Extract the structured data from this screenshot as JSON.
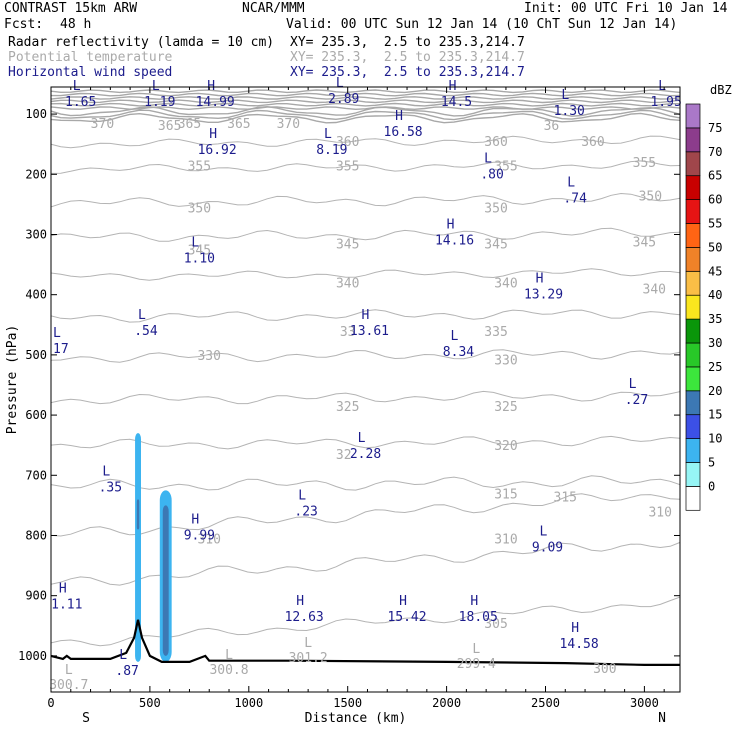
{
  "header": {
    "model": "CONTRAST 15km ARW",
    "org": "NCAR/MMM",
    "init": "Init: 00 UTC Fri 10 Jan 14",
    "fcst_label": "Fcst:",
    "fcst_value": "48 h",
    "valid": "Valid: 00 UTC Sun 12 Jan 14 (10 ChT Sun 12 Jan 14)",
    "fields": [
      {
        "name": "Radar reflectivity (lamda = 10 cm)",
        "xy": "XY= 235.3,  2.5 to 235.3,214.7",
        "color": "#000000"
      },
      {
        "name": "Potential temperature",
        "xy": "XY= 235.3,  2.5 to 235.3,214.7",
        "color": "#aaaaaa"
      },
      {
        "name": "Horizontal wind speed",
        "xy": "XY= 235.3,  2.5 to 235.3,214.7",
        "color": "#1c1c8c"
      }
    ]
  },
  "chart_data": {
    "type": "cross-section",
    "xlabel": "Distance (km)",
    "ylabel": "Pressure (hPa)",
    "xlim": [
      0,
      3180
    ],
    "ylim": [
      1060,
      55
    ],
    "x_ticks": [
      0,
      500,
      1000,
      1500,
      2000,
      2500,
      3000
    ],
    "y_ticks": [
      100,
      200,
      300,
      400,
      500,
      600,
      700,
      800,
      900,
      1000
    ],
    "left_end_label": "S",
    "right_end_label": "N",
    "colorbar": {
      "title": "dBZ",
      "levels": [
        0,
        5,
        10,
        15,
        20,
        25,
        30,
        35,
        40,
        45,
        50,
        55,
        60,
        65,
        70,
        75
      ],
      "colors": [
        "#ffffff",
        "#96f5f5",
        "#3cb4f0",
        "#3c50e6",
        "#3c78b4",
        "#3ce63c",
        "#28c828",
        "#0a960a",
        "#fae61e",
        "#fabe46",
        "#f08228",
        "#ff6414",
        "#e61414",
        "#c80000",
        "#a0464b",
        "#8c3c8c",
        "#aa78c8"
      ]
    },
    "theta_labels": [
      {
        "x": 260,
        "p": 115,
        "t": "370"
      },
      {
        "x": 700,
        "p": 115,
        "t": "365"
      },
      {
        "x": 950,
        "p": 115,
        "t": "365"
      },
      {
        "x": 1200,
        "p": 115,
        "t": "370"
      },
      {
        "x": 600,
        "p": 118,
        "t": "365"
      },
      {
        "x": 1500,
        "p": 145,
        "t": "360"
      },
      {
        "x": 2250,
        "p": 145,
        "t": "360"
      },
      {
        "x": 2740,
        "p": 145,
        "t": "360"
      },
      {
        "x": 2530,
        "p": 118,
        "t": "36"
      },
      {
        "x": 750,
        "p": 185,
        "t": "355"
      },
      {
        "x": 1500,
        "p": 185,
        "t": "355"
      },
      {
        "x": 2300,
        "p": 185,
        "t": "355"
      },
      {
        "x": 3000,
        "p": 180,
        "t": "355"
      },
      {
        "x": 750,
        "p": 255,
        "t": "350"
      },
      {
        "x": 2250,
        "p": 255,
        "t": "350"
      },
      {
        "x": 3030,
        "p": 235,
        "t": "350"
      },
      {
        "x": 750,
        "p": 325,
        "t": "345"
      },
      {
        "x": 1500,
        "p": 315,
        "t": "345"
      },
      {
        "x": 2250,
        "p": 315,
        "t": "345"
      },
      {
        "x": 3000,
        "p": 312,
        "t": "345"
      },
      {
        "x": 1500,
        "p": 380,
        "t": "340"
      },
      {
        "x": 2300,
        "p": 380,
        "t": "340"
      },
      {
        "x": 3050,
        "p": 390,
        "t": "340"
      },
      {
        "x": 1500,
        "p": 460,
        "t": "33"
      },
      {
        "x": 2250,
        "p": 460,
        "t": "335"
      },
      {
        "x": 800,
        "p": 500,
        "t": "330"
      },
      {
        "x": 2300,
        "p": 508,
        "t": "330"
      },
      {
        "x": 1500,
        "p": 585,
        "t": "325"
      },
      {
        "x": 2300,
        "p": 585,
        "t": "325"
      },
      {
        "x": 1480,
        "p": 665,
        "t": "32"
      },
      {
        "x": 2300,
        "p": 650,
        "t": "320"
      },
      {
        "x": 2300,
        "p": 730,
        "t": "315"
      },
      {
        "x": 2600,
        "p": 735,
        "t": "315"
      },
      {
        "x": 3080,
        "p": 760,
        "t": "310"
      },
      {
        "x": 800,
        "p": 805,
        "t": "310"
      },
      {
        "x": 2300,
        "p": 805,
        "t": "310"
      },
      {
        "x": 2250,
        "p": 945,
        "t": "305"
      },
      {
        "x": 2800,
        "p": 1020,
        "t": "300"
      }
    ],
    "theta_extrema": [
      {
        "x": 90,
        "p": 1050,
        "t": "L",
        "v": "300.7"
      },
      {
        "x": 900,
        "p": 1025,
        "t": "L",
        "v": "300.8"
      },
      {
        "x": 1300,
        "p": 1005,
        "t": "L",
        "v": "301.2"
      },
      {
        "x": 2150,
        "p": 1015,
        "t": "L",
        "v": "299.4"
      }
    ],
    "wind_extrema": [
      {
        "x": 150,
        "p": 80,
        "t": "L",
        "v": "1.65"
      },
      {
        "x": 550,
        "p": 80,
        "t": "L",
        "v": "1.19"
      },
      {
        "x": 830,
        "p": 80,
        "t": "H",
        "v": "14.99"
      },
      {
        "x": 1480,
        "p": 75,
        "t": "L",
        "v": "2.89"
      },
      {
        "x": 2050,
        "p": 80,
        "t": "H",
        "v": "14.5"
      },
      {
        "x": 2620,
        "p": 95,
        "t": "L",
        "v": "1.30"
      },
      {
        "x": 3110,
        "p": 80,
        "t": "L",
        "v": "1.95"
      },
      {
        "x": 840,
        "p": 160,
        "t": "H",
        "v": "16.92"
      },
      {
        "x": 1420,
        "p": 160,
        "t": "L",
        "v": "8.19"
      },
      {
        "x": 1780,
        "p": 130,
        "t": "H",
        "v": "16.58"
      },
      {
        "x": 2230,
        "p": 200,
        "t": "L",
        "v": ".80"
      },
      {
        "x": 2650,
        "p": 240,
        "t": "L",
        "v": ".74"
      },
      {
        "x": 2040,
        "p": 310,
        "t": "H",
        "v": "14.16"
      },
      {
        "x": 750,
        "p": 340,
        "t": "L",
        "v": "1.10"
      },
      {
        "x": 2490,
        "p": 400,
        "t": "H",
        "v": "13.29"
      },
      {
        "x": 50,
        "p": 490,
        "t": "L",
        "v": "17"
      },
      {
        "x": 480,
        "p": 460,
        "t": "L",
        "v": ".54"
      },
      {
        "x": 1610,
        "p": 460,
        "t": "H",
        "v": "13.61"
      },
      {
        "x": 2060,
        "p": 495,
        "t": "L",
        "v": "8.34"
      },
      {
        "x": 2960,
        "p": 575,
        "t": "L",
        "v": ".27"
      },
      {
        "x": 1590,
        "p": 665,
        "t": "L",
        "v": "2.28"
      },
      {
        "x": 300,
        "p": 720,
        "t": "L",
        "v": ".35"
      },
      {
        "x": 1290,
        "p": 760,
        "t": "L",
        "v": ".23"
      },
      {
        "x": 750,
        "p": 800,
        "t": "H",
        "v": "9.99"
      },
      {
        "x": 2510,
        "p": 820,
        "t": "L",
        "v": "9.09"
      },
      {
        "x": 80,
        "p": 915,
        "t": "H",
        "v": "1.11"
      },
      {
        "x": 1280,
        "p": 935,
        "t": "H",
        "v": "12.63"
      },
      {
        "x": 1800,
        "p": 935,
        "t": "H",
        "v": "15.42"
      },
      {
        "x": 2160,
        "p": 935,
        "t": "H",
        "v": "18.05"
      },
      {
        "x": 2670,
        "p": 980,
        "t": "H",
        "v": "14.58"
      },
      {
        "x": 385,
        "p": 1025,
        "t": "L",
        "v": ".87"
      }
    ],
    "terrain": [
      [
        0,
        1000
      ],
      [
        60,
        1005
      ],
      [
        80,
        1000
      ],
      [
        100,
        1005
      ],
      [
        300,
        1005
      ],
      [
        380,
        995
      ],
      [
        420,
        970
      ],
      [
        440,
        940
      ],
      [
        460,
        970
      ],
      [
        500,
        1000
      ],
      [
        560,
        1010
      ],
      [
        700,
        1010
      ],
      [
        780,
        1000
      ],
      [
        800,
        1008
      ],
      [
        1200,
        1008
      ],
      [
        2000,
        1010
      ],
      [
        2600,
        1012
      ],
      [
        3000,
        1015
      ],
      [
        3180,
        1015
      ]
    ],
    "reflectivity_cells": [
      {
        "x": 440,
        "p_top": 630,
        "p_bot": 1010,
        "width_km": 30,
        "dbz": 5
      },
      {
        "x": 440,
        "p_top": 740,
        "p_bot": 790,
        "width_km": 12,
        "dbz": 15
      },
      {
        "x": 580,
        "p_top": 725,
        "p_bot": 1010,
        "width_km": 60,
        "dbz": 5
      },
      {
        "x": 580,
        "p_top": 750,
        "p_bot": 1000,
        "width_km": 30,
        "dbz": 15
      }
    ]
  }
}
